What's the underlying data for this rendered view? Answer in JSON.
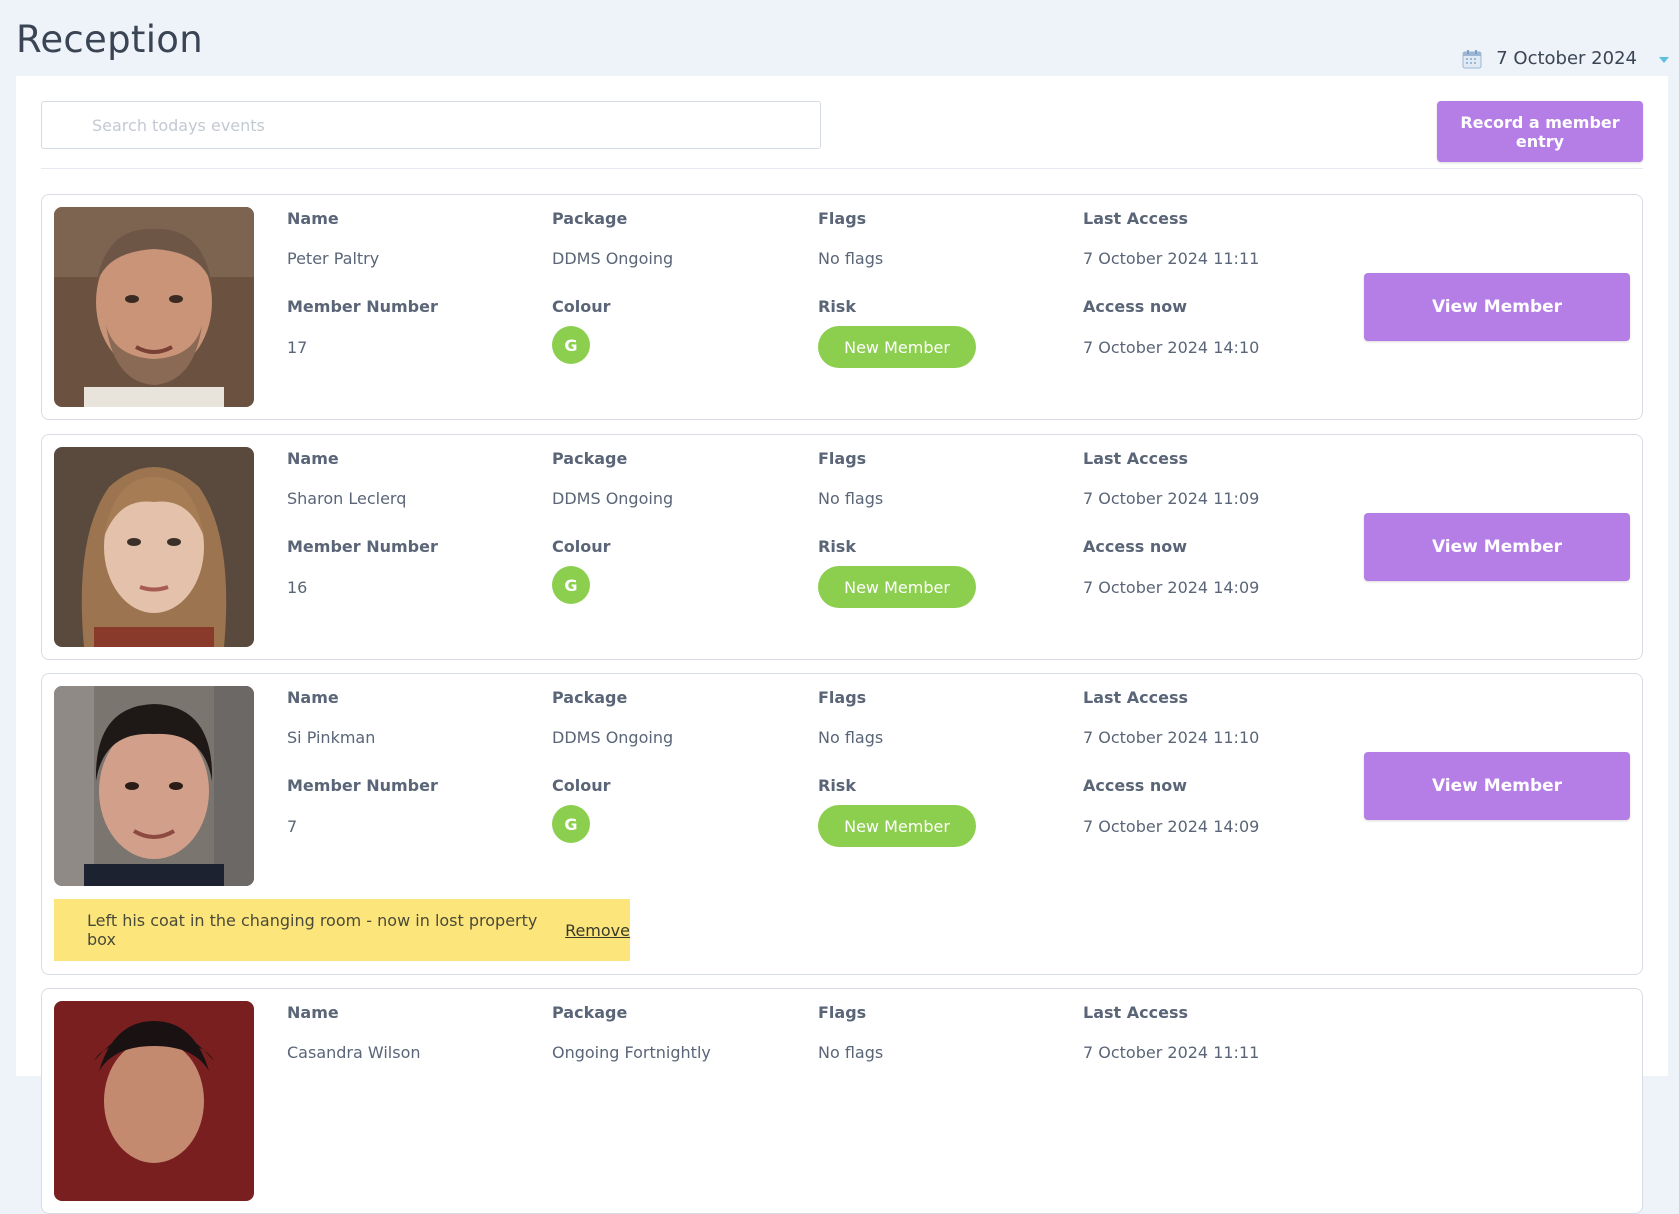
{
  "page": {
    "title": "Reception"
  },
  "date_picker": {
    "value": "7 October 2024"
  },
  "search": {
    "placeholder": "Search todays events",
    "value": ""
  },
  "toolbar": {
    "record_label": "Record a member entry"
  },
  "labels": {
    "name": "Name",
    "package": "Package",
    "flags": "Flags",
    "last_access": "Last Access",
    "member_number": "Member Number",
    "colour": "Colour",
    "risk": "Risk",
    "access_now": "Access now",
    "view_member": "View Member",
    "remove": "Remove"
  },
  "members": [
    {
      "name": "Peter Paltry",
      "package": "DDMS Ongoing",
      "flags": "No flags",
      "last_access": "7 October 2024 11:11",
      "member_number": "17",
      "colour": "G",
      "risk": "New Member",
      "access_now": "7 October 2024 14:10"
    },
    {
      "name": "Sharon Leclerq",
      "package": "DDMS Ongoing",
      "flags": "No flags",
      "last_access": "7 October 2024 11:09",
      "member_number": "16",
      "colour": "G",
      "risk": "New Member",
      "access_now": "7 October 2024 14:09"
    },
    {
      "name": "Si Pinkman",
      "package": "DDMS Ongoing",
      "flags": "No flags",
      "last_access": "7 October 2024 11:10",
      "member_number": "7",
      "colour": "G",
      "risk": "New Member",
      "access_now": "7 October 2024 14:09",
      "note": "Left his coat in the changing room - now in lost property box"
    },
    {
      "name": "Casandra Wilson",
      "package": "Ongoing Fortnightly",
      "flags": "No flags",
      "last_access": "7 October 2024 11:11"
    }
  ],
  "colors": {
    "accent_purple": "#b57ee6",
    "status_green": "#8ccf4e",
    "note_yellow": "#fce57a",
    "background": "#eef3f9"
  }
}
